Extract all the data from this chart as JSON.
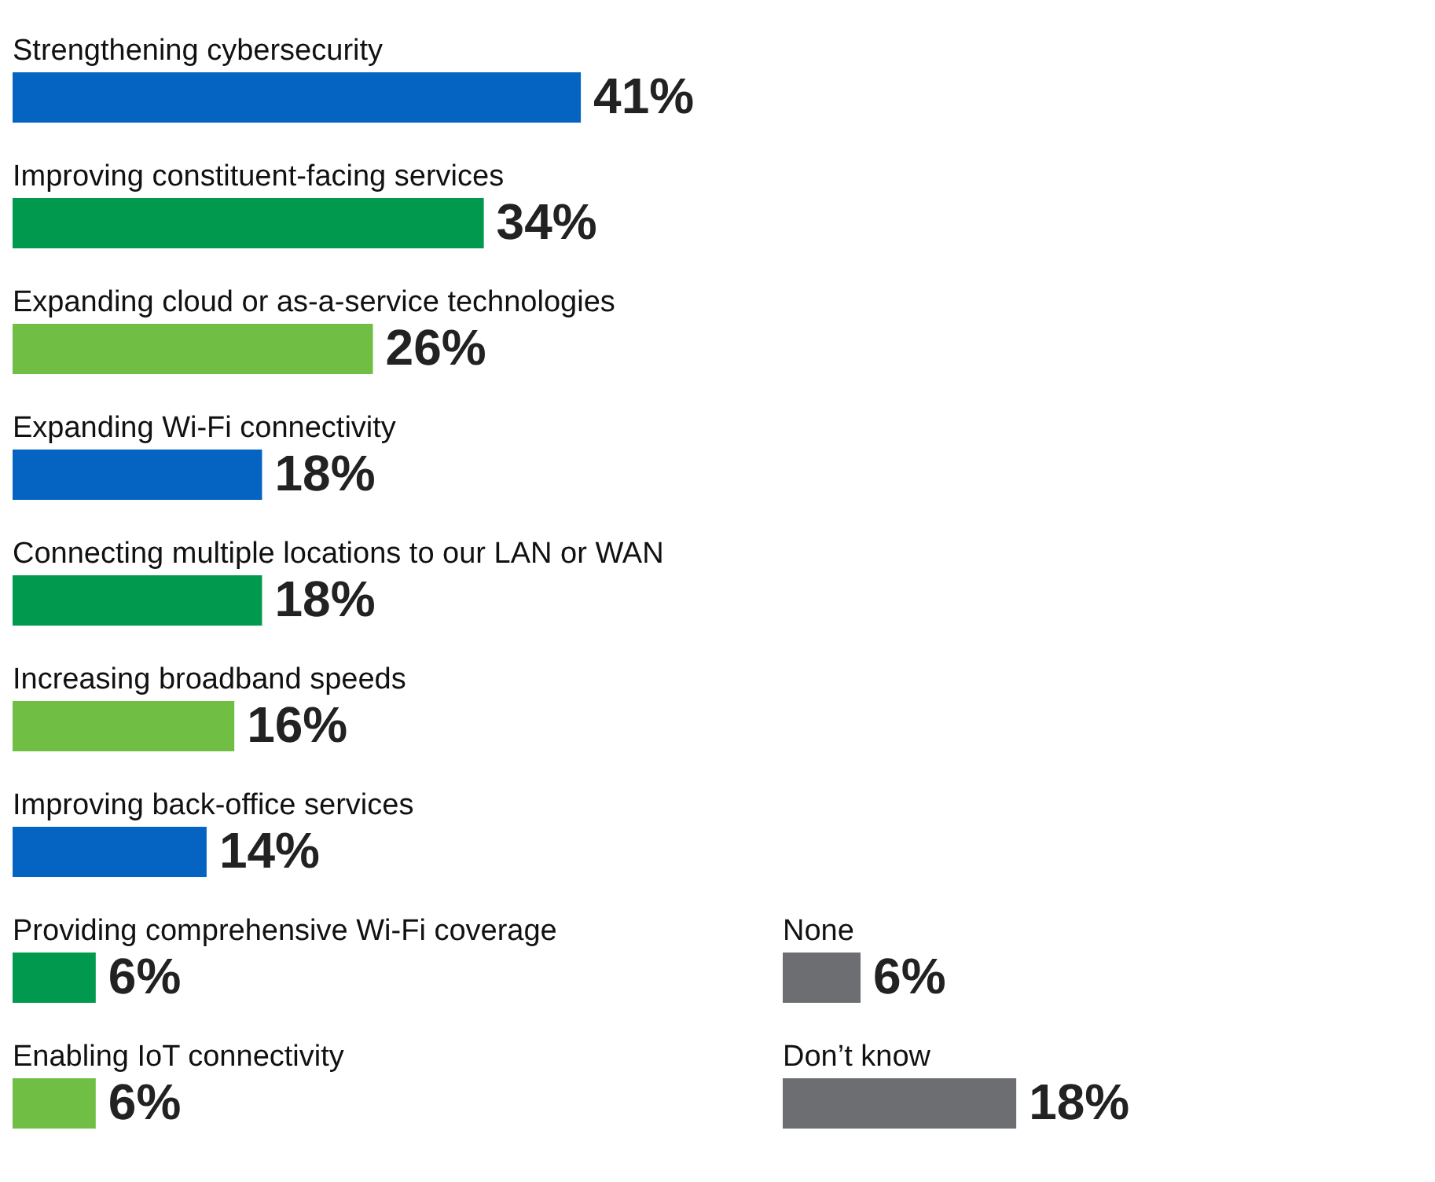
{
  "chart_data": [
    {
      "type": "bar",
      "orientation": "horizontal",
      "categories": [
        "Strengthening cybersecurity",
        "Improving constituent-facing services",
        "Expanding cloud or as-a-service technologies",
        "Expanding Wi-Fi connectivity",
        "Connecting multiple locations to our LAN or WAN",
        "Increasing broadband speeds",
        "Improving back-office services",
        "Providing comprehensive Wi-Fi coverage",
        "Enabling IoT connectivity"
      ],
      "values": [
        41,
        34,
        26,
        18,
        18,
        16,
        14,
        6,
        6
      ],
      "colors": [
        "#0563c1",
        "#00994d",
        "#70bf44",
        "#0563c1",
        "#00994d",
        "#70bf44",
        "#0563c1",
        "#00994d",
        "#70bf44"
      ],
      "value_labels": [
        "41%",
        "34%",
        "26%",
        "18%",
        "18%",
        "16%",
        "14%",
        "6%",
        "6%"
      ]
    },
    {
      "type": "bar",
      "orientation": "horizontal",
      "categories": [
        "None",
        "Don’t know"
      ],
      "values": [
        6,
        18
      ],
      "colors": [
        "#6d6e71",
        "#6d6e71"
      ],
      "value_labels": [
        "6%",
        "18%"
      ]
    }
  ]
}
